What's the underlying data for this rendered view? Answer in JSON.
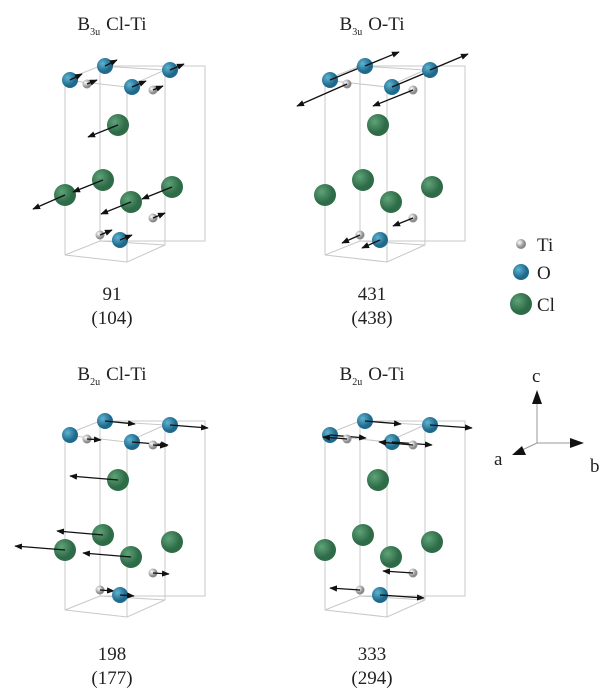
{
  "panels": [
    {
      "title": {
        "mode": "B",
        "subscript": "3u",
        "bond": "Cl-Ti"
      },
      "frequency": 91,
      "reference": "(104)"
    },
    {
      "title": {
        "mode": "B",
        "subscript": "3u",
        "bond": "O-Ti"
      },
      "frequency": 431,
      "reference": "(438)"
    },
    {
      "title": {
        "mode": "B",
        "subscript": "2u",
        "bond": "Cl-Ti"
      },
      "frequency": 198,
      "reference": "(177)"
    },
    {
      "title": {
        "mode": "B",
        "subscript": "2u",
        "bond": "O-Ti"
      },
      "frequency": 333,
      "reference": "(294)"
    }
  ],
  "legend": [
    "Ti",
    "O",
    "Cl"
  ],
  "axes": {
    "a": "a",
    "b": "b",
    "c": "c"
  }
}
